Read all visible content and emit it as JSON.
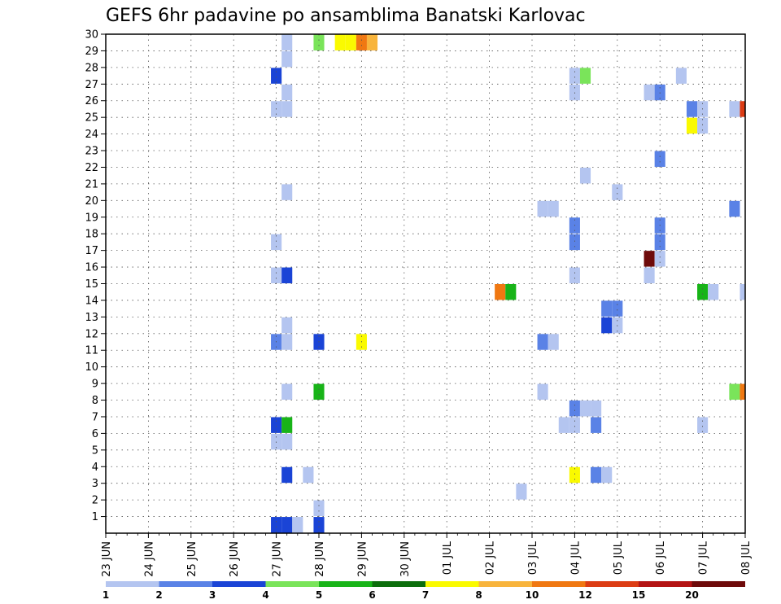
{
  "chart_data": {
    "type": "heatmap",
    "title": "GEFS 6hr padavine po ansamblima Banatski Karlovac",
    "y_ticks": [
      "1",
      "2",
      "3",
      "4",
      "5",
      "6",
      "7",
      "8",
      "9",
      "10",
      "11",
      "12",
      "13",
      "14",
      "15",
      "16",
      "17",
      "18",
      "19",
      "20",
      "21",
      "22",
      "23",
      "24",
      "25",
      "26",
      "27",
      "28",
      "29",
      "30"
    ],
    "ylim": [
      0,
      30
    ],
    "x_ticks": [
      "23 JUN",
      "24 JUN",
      "25 JUN",
      "26 JUN",
      "27 JUN",
      "28 JUN",
      "29 JUN",
      "30 JUN",
      "01 JUL",
      "02 JUL",
      "03 JUL",
      "04 JUL",
      "05 JUL",
      "06 JUL",
      "07 JUL",
      "08 JUL"
    ],
    "x_steps_per_day": 4,
    "x_range_steps": [
      0,
      60
    ],
    "grid": true,
    "colorbar": {
      "placement": "bottom",
      "labels": [
        "1",
        "2",
        "3",
        "4",
        "5",
        "6",
        "7",
        "8",
        "10",
        "12",
        "15",
        "20"
      ],
      "colors": [
        "#b4c5f0",
        "#5a82e6",
        "#1a44d6",
        "#7ae45a",
        "#18b418",
        "#0c6e0c",
        "#fafa00",
        "#f8b43c",
        "#f07812",
        "#dc3c14",
        "#b41414",
        "#6e0a0a"
      ]
    },
    "cells": [
      {
        "t": 16,
        "m": 0,
        "level": 3
      },
      {
        "t": 17,
        "m": 0,
        "level": 3
      },
      {
        "t": 18,
        "m": 0,
        "level": 1
      },
      {
        "t": 20,
        "m": 0,
        "level": 3
      },
      {
        "t": 20,
        "m": 1,
        "level": 1
      },
      {
        "t": 17,
        "m": 3,
        "level": 3
      },
      {
        "t": 19,
        "m": 3,
        "level": 1
      },
      {
        "t": 44,
        "m": 3,
        "level": 7
      },
      {
        "t": 46,
        "m": 3,
        "level": 2
      },
      {
        "t": 47,
        "m": 3,
        "level": 1
      },
      {
        "t": 39,
        "m": 2,
        "level": 1
      },
      {
        "t": 16,
        "m": 5,
        "level": 1
      },
      {
        "t": 17,
        "m": 5,
        "level": 1
      },
      {
        "t": 16,
        "m": 6,
        "level": 3
      },
      {
        "t": 17,
        "m": 6,
        "level": 5
      },
      {
        "t": 43,
        "m": 6,
        "level": 1
      },
      {
        "t": 44,
        "m": 6,
        "level": 1
      },
      {
        "t": 46,
        "m": 6,
        "level": 2
      },
      {
        "t": 56,
        "m": 6,
        "level": 1
      },
      {
        "t": 44,
        "m": 7,
        "level": 2
      },
      {
        "t": 45,
        "m": 7,
        "level": 1
      },
      {
        "t": 46,
        "m": 7,
        "level": 1
      },
      {
        "t": 17,
        "m": 8,
        "level": 1
      },
      {
        "t": 20,
        "m": 8,
        "level": 5
      },
      {
        "t": 41,
        "m": 8,
        "level": 1
      },
      {
        "t": 59,
        "m": 8,
        "level": 4
      },
      {
        "t": 60,
        "m": 8,
        "level": 9
      },
      {
        "t": 16,
        "m": 11,
        "level": 2
      },
      {
        "t": 17,
        "m": 11,
        "level": 1
      },
      {
        "t": 20,
        "m": 11,
        "level": 3
      },
      {
        "t": 24,
        "m": 11,
        "level": 7
      },
      {
        "t": 41,
        "m": 11,
        "level": 2
      },
      {
        "t": 42,
        "m": 11,
        "level": 1
      },
      {
        "t": 17,
        "m": 12,
        "level": 1
      },
      {
        "t": 47,
        "m": 12,
        "level": 3
      },
      {
        "t": 48,
        "m": 12,
        "level": 1
      },
      {
        "t": 47,
        "m": 13,
        "level": 2
      },
      {
        "t": 48,
        "m": 13,
        "level": 2
      },
      {
        "t": 37,
        "m": 14,
        "level": 9
      },
      {
        "t": 38,
        "m": 14,
        "level": 5
      },
      {
        "t": 56,
        "m": 14,
        "level": 5
      },
      {
        "t": 57,
        "m": 14,
        "level": 1
      },
      {
        "t": 60,
        "m": 14,
        "level": 1
      },
      {
        "t": 16,
        "m": 15,
        "level": 1
      },
      {
        "t": 17,
        "m": 15,
        "level": 3
      },
      {
        "t": 44,
        "m": 15,
        "level": 1
      },
      {
        "t": 51,
        "m": 15,
        "level": 1
      },
      {
        "t": 51,
        "m": 16,
        "level": 12
      },
      {
        "t": 52,
        "m": 16,
        "level": 1
      },
      {
        "t": 16,
        "m": 17,
        "level": 1
      },
      {
        "t": 44,
        "m": 17,
        "level": 2
      },
      {
        "t": 52,
        "m": 17,
        "level": 2
      },
      {
        "t": 44,
        "m": 18,
        "level": 2
      },
      {
        "t": 52,
        "m": 18,
        "level": 2
      },
      {
        "t": 41,
        "m": 19,
        "level": 1
      },
      {
        "t": 42,
        "m": 19,
        "level": 1
      },
      {
        "t": 59,
        "m": 19,
        "level": 2
      },
      {
        "t": 17,
        "m": 20,
        "level": 1
      },
      {
        "t": 48,
        "m": 20,
        "level": 1
      },
      {
        "t": 45,
        "m": 21,
        "level": 1
      },
      {
        "t": 52,
        "m": 22,
        "level": 2
      },
      {
        "t": 55,
        "m": 24,
        "level": 7
      },
      {
        "t": 56,
        "m": 24,
        "level": 1
      },
      {
        "t": 16,
        "m": 25,
        "level": 1
      },
      {
        "t": 17,
        "m": 25,
        "level": 1
      },
      {
        "t": 55,
        "m": 25,
        "level": 2
      },
      {
        "t": 56,
        "m": 25,
        "level": 1
      },
      {
        "t": 59,
        "m": 25,
        "level": 1
      },
      {
        "t": 60,
        "m": 25,
        "level": 10
      },
      {
        "t": 17,
        "m": 26,
        "level": 1
      },
      {
        "t": 44,
        "m": 26,
        "level": 1
      },
      {
        "t": 51,
        "m": 26,
        "level": 1
      },
      {
        "t": 52,
        "m": 26,
        "level": 2
      },
      {
        "t": 16,
        "m": 27,
        "level": 3
      },
      {
        "t": 44,
        "m": 27,
        "level": 1
      },
      {
        "t": 45,
        "m": 27,
        "level": 4
      },
      {
        "t": 54,
        "m": 27,
        "level": 1
      },
      {
        "t": 17,
        "m": 28,
        "level": 1
      },
      {
        "t": 17,
        "m": 29,
        "level": 1
      },
      {
        "t": 20,
        "m": 29,
        "level": 4
      },
      {
        "t": 22,
        "m": 29,
        "level": 7
      },
      {
        "t": 23,
        "m": 29,
        "level": 7
      },
      {
        "t": 24,
        "m": 29,
        "level": 9
      },
      {
        "t": 25,
        "m": 29,
        "level": 8
      }
    ]
  }
}
